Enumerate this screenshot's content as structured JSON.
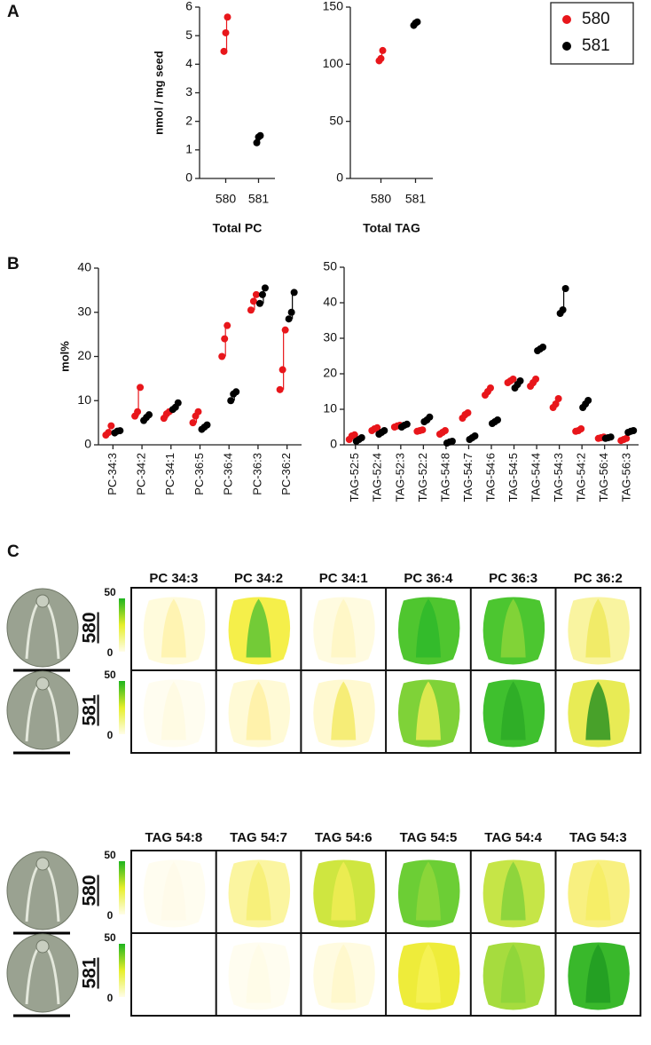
{
  "panels": [
    "A",
    "B",
    "C"
  ],
  "chart_data": [
    {
      "type": "strip",
      "xlabel": "Total PC",
      "ylabel": "nmol / mg seed",
      "categories": [
        "580",
        "581"
      ],
      "ylim": [
        0,
        6
      ],
      "yticks": [
        0,
        1,
        2,
        3,
        4,
        5,
        6
      ],
      "legend": "upper right",
      "series": [
        {
          "name": "580",
          "color": "#e8161b",
          "values": [
            [
              4.45,
              5.1,
              5.65
            ],
            null
          ]
        },
        {
          "name": "581",
          "color": "#000000",
          "values": [
            null,
            [
              1.25,
              1.45,
              1.5
            ]
          ]
        }
      ]
    },
    {
      "type": "strip",
      "xlabel": "Total TAG",
      "categories": [
        "580",
        "581"
      ],
      "ylim": [
        0,
        150
      ],
      "yticks": [
        0,
        50,
        100,
        150
      ],
      "series": [
        {
          "name": "580",
          "color": "#e8161b",
          "values": [
            [
              103,
              105,
              112
            ],
            null
          ]
        },
        {
          "name": "581",
          "color": "#000000",
          "values": [
            null,
            [
              134,
              136,
              137
            ]
          ]
        }
      ]
    },
    {
      "type": "strip",
      "ylabel": "mol%",
      "categories": [
        "PC-34:3",
        "PC-34:2",
        "PC-34:1",
        "PC-36:5",
        "PC-36:4",
        "PC-36:3",
        "PC-36:2"
      ],
      "ylim": [
        0,
        40
      ],
      "yticks": [
        0,
        10,
        20,
        30,
        40
      ],
      "series": [
        {
          "name": "580",
          "color": "#e8161b",
          "values": [
            [
              2.2,
              2.8,
              4.3
            ],
            [
              6.5,
              7.5,
              13
            ],
            [
              6,
              7,
              7.5
            ],
            [
              5,
              6.5,
              7.5
            ],
            [
              20,
              24,
              27
            ],
            [
              30.5,
              32.5,
              34
            ],
            [
              12.5,
              17,
              26
            ]
          ]
        },
        {
          "name": "581",
          "color": "#000000",
          "values": [
            [
              2.7,
              3.1,
              3.2
            ],
            [
              5.5,
              6.2,
              6.8
            ],
            [
              8,
              8.5,
              9.5
            ],
            [
              3.5,
              4,
              4.5
            ],
            [
              10,
              11.5,
              12
            ],
            [
              32,
              34,
              35.5
            ],
            [
              28.5,
              30,
              34.5
            ]
          ]
        }
      ]
    },
    {
      "type": "strip",
      "categories": [
        "TAG-52:5",
        "TAG-52:4",
        "TAG-52:3",
        "TAG-52:2",
        "TAG-54:8",
        "TAG-54:7",
        "TAG-54:6",
        "TAG-54:5",
        "TAG-54:4",
        "TAG-54:3",
        "TAG-54:2",
        "TAG-56:4",
        "TAG-56:3"
      ],
      "ylim": [
        0,
        50
      ],
      "yticks": [
        0,
        10,
        20,
        30,
        40,
        50
      ],
      "series": [
        {
          "name": "580",
          "color": "#e8161b",
          "values": [
            [
              1.5,
              2.5,
              2.8
            ],
            [
              4,
              4.5,
              4.8
            ],
            [
              5,
              5.3,
              5.5
            ],
            [
              3.8,
              4,
              4.2
            ],
            [
              3,
              3.5,
              4
            ],
            [
              7.5,
              8.5,
              9
            ],
            [
              14,
              15,
              16
            ],
            [
              17.5,
              18,
              18.5
            ],
            [
              16.5,
              17.5,
              18.5
            ],
            [
              10.5,
              11.5,
              13
            ],
            [
              3.8,
              4,
              4.5
            ],
            [
              1.8,
              2,
              2.2
            ],
            [
              1.2,
              1.5,
              1.8
            ]
          ]
        },
        {
          "name": "581",
          "color": "#000000",
          "values": [
            [
              1,
              1.5,
              2
            ],
            [
              3,
              3.5,
              4
            ],
            [
              5,
              5.5,
              5.8
            ],
            [
              6.5,
              7,
              7.8
            ],
            [
              0.5,
              0.8,
              1
            ],
            [
              1.5,
              2,
              2.5
            ],
            [
              6,
              6.5,
              7
            ],
            [
              16,
              17,
              18
            ],
            [
              26.5,
              27,
              27.5
            ],
            [
              37,
              38,
              44
            ],
            [
              10.5,
              11.5,
              12.5
            ],
            [
              1.8,
              2,
              2.2
            ],
            [
              3.5,
              3.8,
              4
            ]
          ]
        }
      ]
    }
  ],
  "panel_c": {
    "blocks": [
      {
        "headers": [
          "PC 34:3",
          "PC 34:2",
          "PC 34:1",
          "PC 36:4",
          "PC 36:3",
          "PC 36:2"
        ],
        "rows": [
          {
            "label": "580",
            "scale": [
              50,
              0
            ]
          },
          {
            "label": "581",
            "scale": [
              50,
              0
            ]
          }
        ]
      },
      {
        "headers": [
          "TAG 54:8",
          "TAG 54:7",
          "TAG 54:6",
          "TAG 54:5",
          "TAG 54:4",
          "TAG 54:3"
        ],
        "rows": [
          {
            "label": "580",
            "scale": [
              50,
              0
            ]
          },
          {
            "label": "581",
            "scale": [
              50,
              0
            ]
          }
        ]
      }
    ]
  }
}
